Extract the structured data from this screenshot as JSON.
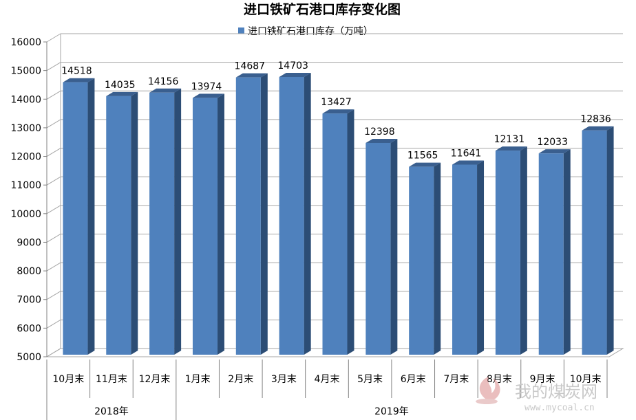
{
  "chart_data": {
    "type": "bar",
    "title": "进口铁矿石港口库存变化图",
    "legend": {
      "label": "进口铁矿石港口库存（万吨）",
      "position": "top"
    },
    "categories": [
      "10月末",
      "11月末",
      "12月末",
      "1月末",
      "2月末",
      "3月末",
      "4月末",
      "5月末",
      "6月末",
      "7月末",
      "8月末",
      "9月末",
      "10月末"
    ],
    "groups": [
      {
        "label": "2018年",
        "count": 3
      },
      {
        "label": "2019年",
        "count": 10
      }
    ],
    "series": [
      {
        "name": "进口铁矿石港口库存（万吨）",
        "values": [
          14518,
          14035,
          14156,
          13974,
          14687,
          14703,
          13427,
          12398,
          11565,
          11641,
          12131,
          12033,
          12836
        ]
      }
    ],
    "ylim": [
      5000,
      16000
    ],
    "yticks": [
      5000,
      6000,
      7000,
      8000,
      9000,
      10000,
      11000,
      12000,
      13000,
      14000,
      15000,
      16000
    ],
    "grid": true,
    "data_labels": true,
    "colors": {
      "bar_front": "#4f81bd",
      "bar_side": "#2c4d75",
      "bar_top": "#3a5f8f",
      "grid": "#a6a6a6"
    }
  },
  "watermark": {
    "text_cn": "我的煤炭网",
    "text_en": "www.mycoal.cn"
  }
}
